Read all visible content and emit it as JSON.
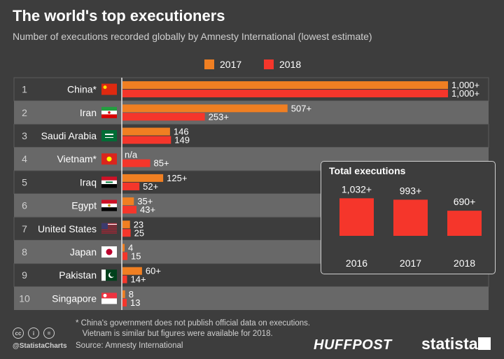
{
  "title": "The world's top executioners",
  "subtitle": "Number of executions recorded globally by Amnesty International (lowest estimate)",
  "colors": {
    "y2017": "#f07f22",
    "y2018": "#f5362b",
    "row_dark": "#686868",
    "background": "#3d3d3d"
  },
  "chart_data": [
    {
      "type": "bar",
      "orientation": "horizontal",
      "title": "",
      "series": [
        {
          "name": "2017",
          "values": [
            1000,
            507,
            146,
            null,
            125,
            35,
            23,
            4,
            60,
            8
          ],
          "labels": [
            "1,000+",
            "507+",
            "146",
            "n/a",
            "125+",
            "35+",
            "23",
            "4",
            "60+",
            "8"
          ]
        },
        {
          "name": "2018",
          "values": [
            1000,
            253,
            149,
            85,
            52,
            43,
            25,
            15,
            14,
            13
          ],
          "labels": [
            "1,000+",
            "253+",
            "149",
            "85+",
            "52+",
            "43+",
            "25",
            "15",
            "14+",
            "13"
          ]
        }
      ],
      "ranks": [
        "1",
        "2",
        "3",
        "4",
        "5",
        "6",
        "7",
        "8",
        "9",
        "10"
      ],
      "categories": [
        "China*",
        "Iran",
        "Saudi Arabia",
        "Vietnam*",
        "Iraq",
        "Egypt",
        "United States",
        "Japan",
        "Pakistan",
        "Singapore"
      ],
      "legend": "top"
    },
    {
      "type": "bar",
      "title": "Total executions",
      "categories": [
        "2016",
        "2017",
        "2018"
      ],
      "values": [
        1032,
        993,
        690
      ],
      "labels": [
        "1,032+",
        "993+",
        "690+"
      ]
    }
  ],
  "footnote": "* China's government does not publish official data on executions.\n   Vietnam is similar but figures were available for 2018.",
  "source": "Source: Amnesty International",
  "handle": "@StatistaCharts",
  "brand_huffpost": "HUFFPOST",
  "brand_statista": "statista",
  "flag_icons": [
    "china-flag-icon",
    "iran-flag-icon",
    "saudi-arabia-flag-icon",
    "vietnam-flag-icon",
    "iraq-flag-icon",
    "egypt-flag-icon",
    "us-flag-icon",
    "japan-flag-icon",
    "pakistan-flag-icon",
    "singapore-flag-icon"
  ]
}
